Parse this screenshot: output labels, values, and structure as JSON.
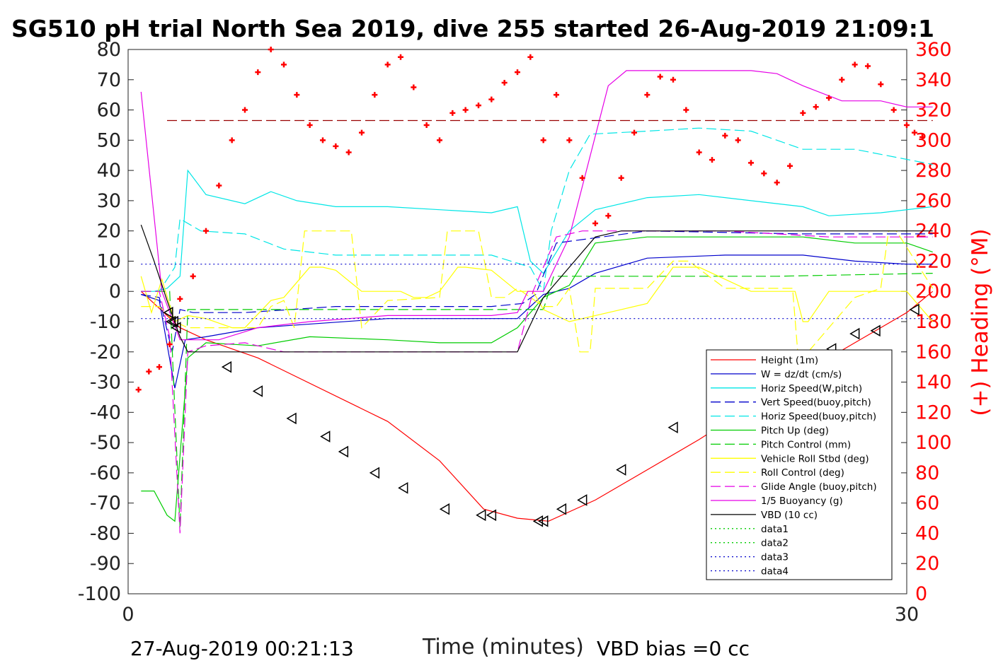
{
  "chart_data": {
    "type": "line",
    "title": "SG510 pH trial North Sea 2019, dive 255 started 26-Aug-2019 21:09:1",
    "xlabel": "Time (minutes)",
    "ylabel_right": "(+) Heading (°M)",
    "footer_left": "27-Aug-2019 00:21:13",
    "footer_right": "VBD bias =0 cc",
    "xlim": [
      0,
      30
    ],
    "ylim": [
      -100,
      80
    ],
    "ylim_right": [
      0,
      360
    ],
    "x_ticks": [
      "0",
      "30"
    ],
    "y_ticks": [
      "80",
      "70",
      "60",
      "50",
      "40",
      "30",
      "20",
      "10",
      "0",
      "-10",
      "-20",
      "-30",
      "-40",
      "-50",
      "-60",
      "-70",
      "-80",
      "-90",
      "-100"
    ],
    "y_right_ticks": [
      "360",
      "340",
      "320",
      "300",
      "280",
      "260",
      "240",
      "220",
      "200",
      "180",
      "160",
      "140",
      "120",
      "100",
      "80",
      "60",
      "40",
      "20",
      "0"
    ],
    "legend_position": "bottom-right",
    "legend": [
      {
        "name": "Height (1m)",
        "color": "#ff0000",
        "dash": ""
      },
      {
        "name": "W = dz/dt (cm/s)",
        "color": "#0000cc",
        "dash": ""
      },
      {
        "name": "Horiz Speed(W,pitch)",
        "color": "#00e6e6",
        "dash": ""
      },
      {
        "name": "Vert Speed(buoy,pitch)",
        "color": "#0000cc",
        "dash": "14,6"
      },
      {
        "name": "Horiz Speed(buoy,pitch)",
        "color": "#00e6e6",
        "dash": "14,6"
      },
      {
        "name": "Pitch Up (deg)",
        "color": "#00cc00",
        "dash": ""
      },
      {
        "name": "Pitch Control (mm)",
        "color": "#00cc00",
        "dash": "14,6"
      },
      {
        "name": "Vehicle Roll Stbd (deg)",
        "color": "#ffff00",
        "dash": ""
      },
      {
        "name": "Roll Control (deg)",
        "color": "#ffff00",
        "dash": "14,6"
      },
      {
        "name": "Glide Angle (buoy,pitch)",
        "color": "#e600e6",
        "dash": "14,6"
      },
      {
        "name": "1/5 Buoyancy (g)",
        "color": "#e600e6",
        "dash": ""
      },
      {
        "name": "VBD (10 cc)",
        "color": "#000000",
        "dash": ""
      },
      {
        "name": "data1",
        "color": "#00cc00",
        "dash": "2,4"
      },
      {
        "name": "data2",
        "color": "#00cc00",
        "dash": "2,4"
      },
      {
        "name": "data3",
        "color": "#0000cc",
        "dash": "2,4"
      },
      {
        "name": "data4",
        "color": "#0000cc",
        "dash": "2,4"
      }
    ],
    "series": [
      {
        "key": "height",
        "color": "#ff0000",
        "dash": "",
        "x": [
          0.5,
          1.5,
          2.0,
          3.0,
          5.0,
          10.0,
          12.0,
          13.7,
          15.0,
          16.2,
          18.0,
          22.0,
          26.0,
          28.0,
          30.0,
          31.0
        ],
        "y": [
          0,
          -8,
          -12,
          -16,
          -22,
          -43,
          -56,
          -72,
          -75,
          -76,
          -69,
          -49,
          -27,
          -17,
          -7,
          0
        ]
      },
      {
        "key": "w",
        "color": "#0000cc",
        "dash": "",
        "x": [
          0.5,
          1.2,
          1.8,
          2.2,
          3.0,
          5.0,
          10.0,
          15.0,
          16.0,
          17.0,
          18.0,
          20.0,
          23.0,
          26.0,
          28.0,
          30.0,
          31.0
        ],
        "y": [
          -1,
          -3,
          -32,
          -16,
          -15,
          -12,
          -9,
          -9,
          -1,
          1,
          6,
          11,
          12,
          12,
          10,
          9,
          9
        ]
      },
      {
        "key": "horiz_speed_w",
        "color": "#00e6e6",
        "dash": "",
        "x": [
          0.5,
          1.0,
          1.5,
          2.0,
          2.3,
          3.0,
          4.5,
          5.5,
          6.5,
          8.0,
          10.0,
          12.0,
          14.0,
          15.0,
          15.5,
          16.0,
          17.0,
          18.0,
          20.0,
          22.0,
          24.0,
          26.0,
          27.0,
          29.0,
          31.0
        ],
        "y": [
          0,
          0,
          1,
          5,
          40,
          32,
          29,
          33,
          30,
          28,
          28,
          27,
          26,
          28,
          10,
          6,
          20,
          27,
          31,
          32,
          30,
          28,
          25,
          26,
          28
        ]
      },
      {
        "key": "vert_speed_buoy",
        "color": "#0000cc",
        "dash": "14,6",
        "x": [
          0.5,
          1.2,
          1.7,
          2.0,
          2.5,
          4.5,
          8.0,
          14.0,
          15.2,
          15.7,
          16.5,
          20.0,
          26.0,
          31.0
        ],
        "y": [
          -1,
          -2,
          -20,
          -6,
          -7,
          -7,
          -5,
          -5,
          -4,
          -1,
          16,
          20,
          19,
          19
        ]
      },
      {
        "key": "horiz_speed_buoy",
        "color": "#00e6e6",
        "dash": "14,6",
        "x": [
          0.5,
          1.2,
          1.8,
          2.0,
          2.8,
          4.5,
          6.0,
          8.0,
          14.0,
          15.5,
          16.0,
          16.3,
          17.0,
          17.8,
          20.0,
          22.0,
          24.0,
          26.0,
          28.0,
          31.0
        ],
        "y": [
          0,
          0,
          8,
          24,
          20,
          19,
          14,
          12,
          12,
          8,
          0,
          20,
          40,
          52,
          53,
          54,
          53,
          47,
          47,
          42
        ]
      },
      {
        "key": "pitch_up",
        "color": "#00cc00",
        "dash": "",
        "x": [
          0.5,
          1.0,
          1.5,
          1.8,
          2.3,
          3.0,
          5.0,
          7.0,
          10.0,
          12.0,
          14.0,
          15.0,
          16.0,
          17.0,
          18.0,
          20.0,
          23.0,
          26.0,
          28.0,
          30.0,
          31.0
        ],
        "y": [
          -66,
          -66,
          -74,
          -76,
          -22,
          -17,
          -18,
          -15,
          -16,
          -17,
          -17,
          -12,
          -2,
          2,
          16,
          18,
          18,
          18,
          16,
          16,
          13
        ]
      },
      {
        "key": "pitch_control",
        "color": "#00cc00",
        "dash": "14,6",
        "x": [
          0.5,
          1.6,
          2.0,
          2.3,
          4.0,
          8.0,
          12.0,
          15.0,
          16.0,
          16.4,
          17.0,
          20.0,
          25.0,
          31.0
        ],
        "y": [
          0,
          0,
          -78,
          -6,
          -6,
          -6,
          -6,
          -6,
          -6,
          5,
          5,
          5,
          5,
          6
        ]
      },
      {
        "key": "vehicle_roll",
        "color": "#ffff00",
        "dash": "",
        "x": [
          0.5,
          0.9,
          1.3,
          1.8,
          2.3,
          3.0,
          4.0,
          4.5,
          5.5,
          6.0,
          6.4,
          7.0,
          7.5,
          8.0,
          9.0,
          10.0,
          10.5,
          11.0,
          11.5,
          12.0,
          12.7,
          13.0,
          14.0,
          15.0,
          15.6,
          16.0,
          17.0,
          18.0,
          19.0,
          20.0,
          21.0,
          22.0,
          24.0,
          25.0,
          25.7,
          26.0,
          26.2,
          27.0,
          28.0,
          29.5,
          30.0,
          30.5,
          31.0
        ],
        "y": [
          5,
          -7,
          4,
          -10,
          -8,
          -9,
          -12,
          -12,
          -3,
          -2,
          2,
          8,
          8,
          7,
          0,
          0,
          0,
          -2,
          -2,
          0,
          8,
          8,
          7,
          0,
          0,
          -6,
          -10,
          -8,
          -6,
          -4,
          8,
          8,
          0,
          0,
          0,
          -10,
          -10,
          0,
          0,
          0,
          0,
          -5,
          -10
        ]
      },
      {
        "key": "roll_control",
        "color": "#ffff00",
        "dash": "14,6",
        "x": [
          0.5,
          1.2,
          1.8,
          2.3,
          3.0,
          4.0,
          5.0,
          5.5,
          6.0,
          6.4,
          6.8,
          7.5,
          8.2,
          8.6,
          9.0,
          10.0,
          12.0,
          12.3,
          12.6,
          13.5,
          14.0,
          14.5,
          15.0,
          16.0,
          16.5,
          17.0,
          17.4,
          17.8,
          18.0,
          20.0,
          21.0,
          21.3,
          21.6,
          23.0,
          25.0,
          25.6,
          25.8,
          26.2,
          28.0,
          29.0,
          29.3,
          29.6,
          31.0
        ],
        "y": [
          -5,
          -5,
          -10,
          -12,
          -12,
          -12,
          -12,
          -5,
          -3,
          -12,
          20,
          20,
          20,
          20,
          -12,
          -3,
          -2,
          20,
          20,
          20,
          -2,
          -2,
          1,
          -5,
          -5,
          1,
          -20,
          -20,
          1,
          1,
          10,
          10,
          10,
          1,
          1,
          1,
          -20,
          -20,
          -2,
          1,
          20,
          20,
          1
        ]
      },
      {
        "key": "glide_angle",
        "color": "#e600e6",
        "dash": "14,6",
        "x": [
          0.5,
          1.2,
          1.6,
          2.0,
          2.3,
          3.0,
          4.5,
          6.0,
          8.0,
          12.0,
          14.0,
          15.0,
          15.6,
          16.5,
          17.5,
          20.0,
          23.0,
          25.0,
          27.0,
          29.0,
          31.0
        ],
        "y": [
          0,
          0,
          -15,
          -80,
          -20,
          -18,
          -17,
          -20,
          -20,
          -20,
          -20,
          -20,
          0,
          18,
          20,
          20,
          20,
          19,
          18,
          18,
          18
        ]
      },
      {
        "key": "buoyancy",
        "color": "#e600e6",
        "dash": "",
        "x": [
          0.5,
          1.3,
          2.0,
          2.3,
          3.5,
          5.0,
          7.0,
          10.0,
          14.0,
          15.0,
          15.4,
          16.0,
          17.0,
          18.5,
          19.2,
          20.0,
          22.0,
          24.0,
          25.0,
          25.5,
          26.0,
          27.5,
          29.0,
          30.0,
          31.0
        ],
        "y": [
          66,
          0,
          -16,
          -16,
          -16,
          -12,
          -10,
          -8,
          -8,
          -7,
          0,
          0,
          18,
          68,
          73,
          73,
          73,
          73,
          72,
          70,
          68,
          63,
          63,
          61,
          61
        ]
      },
      {
        "key": "vbd",
        "color": "#000000",
        "dash": "",
        "x": [
          0.5,
          1.0,
          1.5,
          2.0,
          2.3,
          3.0,
          5.0,
          10.0,
          14.0,
          15.0,
          16.0,
          18.0,
          19.0,
          20.0,
          25.0,
          31.0
        ],
        "y": [
          22,
          10,
          -3,
          -15,
          -20,
          -20,
          -20,
          -20,
          -20,
          -20,
          -2,
          18,
          20,
          20,
          20,
          20
        ]
      },
      {
        "key": "dotted_upper",
        "color": "#0000cc",
        "dash": "2,4",
        "x": [
          0.5,
          31.0
        ],
        "y": [
          9,
          9
        ]
      },
      {
        "key": "dotted_lower",
        "color": "#0000cc",
        "dash": "2,4",
        "x": [
          0.5,
          31.0
        ],
        "y": [
          -9,
          -9
        ]
      },
      {
        "key": "dashed_ref",
        "color": "#990000",
        "dash": "14,6",
        "x": [
          1.5,
          31.0
        ],
        "y": [
          56.5,
          56.5
        ]
      }
    ],
    "triangle_markers": {
      "x": [
        1.55,
        1.65,
        1.75,
        1.85,
        3.8,
        5.0,
        6.3,
        7.6,
        8.3,
        9.5,
        10.6,
        12.2,
        13.6,
        14.0,
        15.8,
        16.0,
        16.7,
        17.5,
        19.0,
        21.0,
        23.4,
        24.1,
        27.1,
        28.0,
        28.8,
        30.3
      ],
      "y": [
        -7,
        -10,
        -10,
        -12,
        -25,
        -33,
        -42,
        -48,
        -53,
        -60,
        -65,
        -72,
        -74,
        -74,
        -76,
        -76,
        -72,
        -69,
        -59,
        -45,
        -36,
        -32,
        -19,
        -14,
        -13,
        -6
      ]
    },
    "heading_series": {
      "x": [
        0.4,
        0.8,
        1.2,
        1.6,
        2.0,
        2.5,
        3.0,
        3.5,
        4.0,
        4.5,
        5.0,
        5.5,
        6.0,
        6.5,
        7.0,
        7.5,
        8.0,
        8.5,
        9.0,
        9.5,
        10.0,
        10.5,
        11.0,
        11.5,
        12.0,
        12.5,
        13.0,
        13.5,
        14.0,
        14.5,
        15.0,
        15.5,
        16.0,
        16.5,
        17.0,
        17.5,
        18.0,
        18.5,
        19.0,
        19.5,
        20.0,
        20.5,
        21.0,
        21.5,
        22.0,
        22.5,
        23.0,
        23.5,
        24.0,
        24.5,
        25.0,
        25.5,
        26.0,
        26.5,
        27.0,
        27.5,
        28.0,
        28.5,
        29.0,
        29.5,
        30.0,
        30.3,
        30.6
      ],
      "y": [
        135,
        147,
        150,
        165,
        195,
        210,
        240,
        270,
        300,
        320,
        345,
        360,
        350,
        330,
        310,
        300,
        296,
        292,
        305,
        330,
        350,
        355,
        335,
        310,
        300,
        318,
        320,
        323,
        327,
        338,
        345,
        355,
        300,
        330,
        300,
        275,
        245,
        250,
        275,
        305,
        330,
        342,
        340,
        320,
        292,
        287,
        303,
        300,
        285,
        278,
        272,
        283,
        318,
        322,
        328,
        340,
        350,
        349,
        337,
        320,
        310,
        305,
        302
      ]
    },
    "heading_color": "#ff0000"
  }
}
